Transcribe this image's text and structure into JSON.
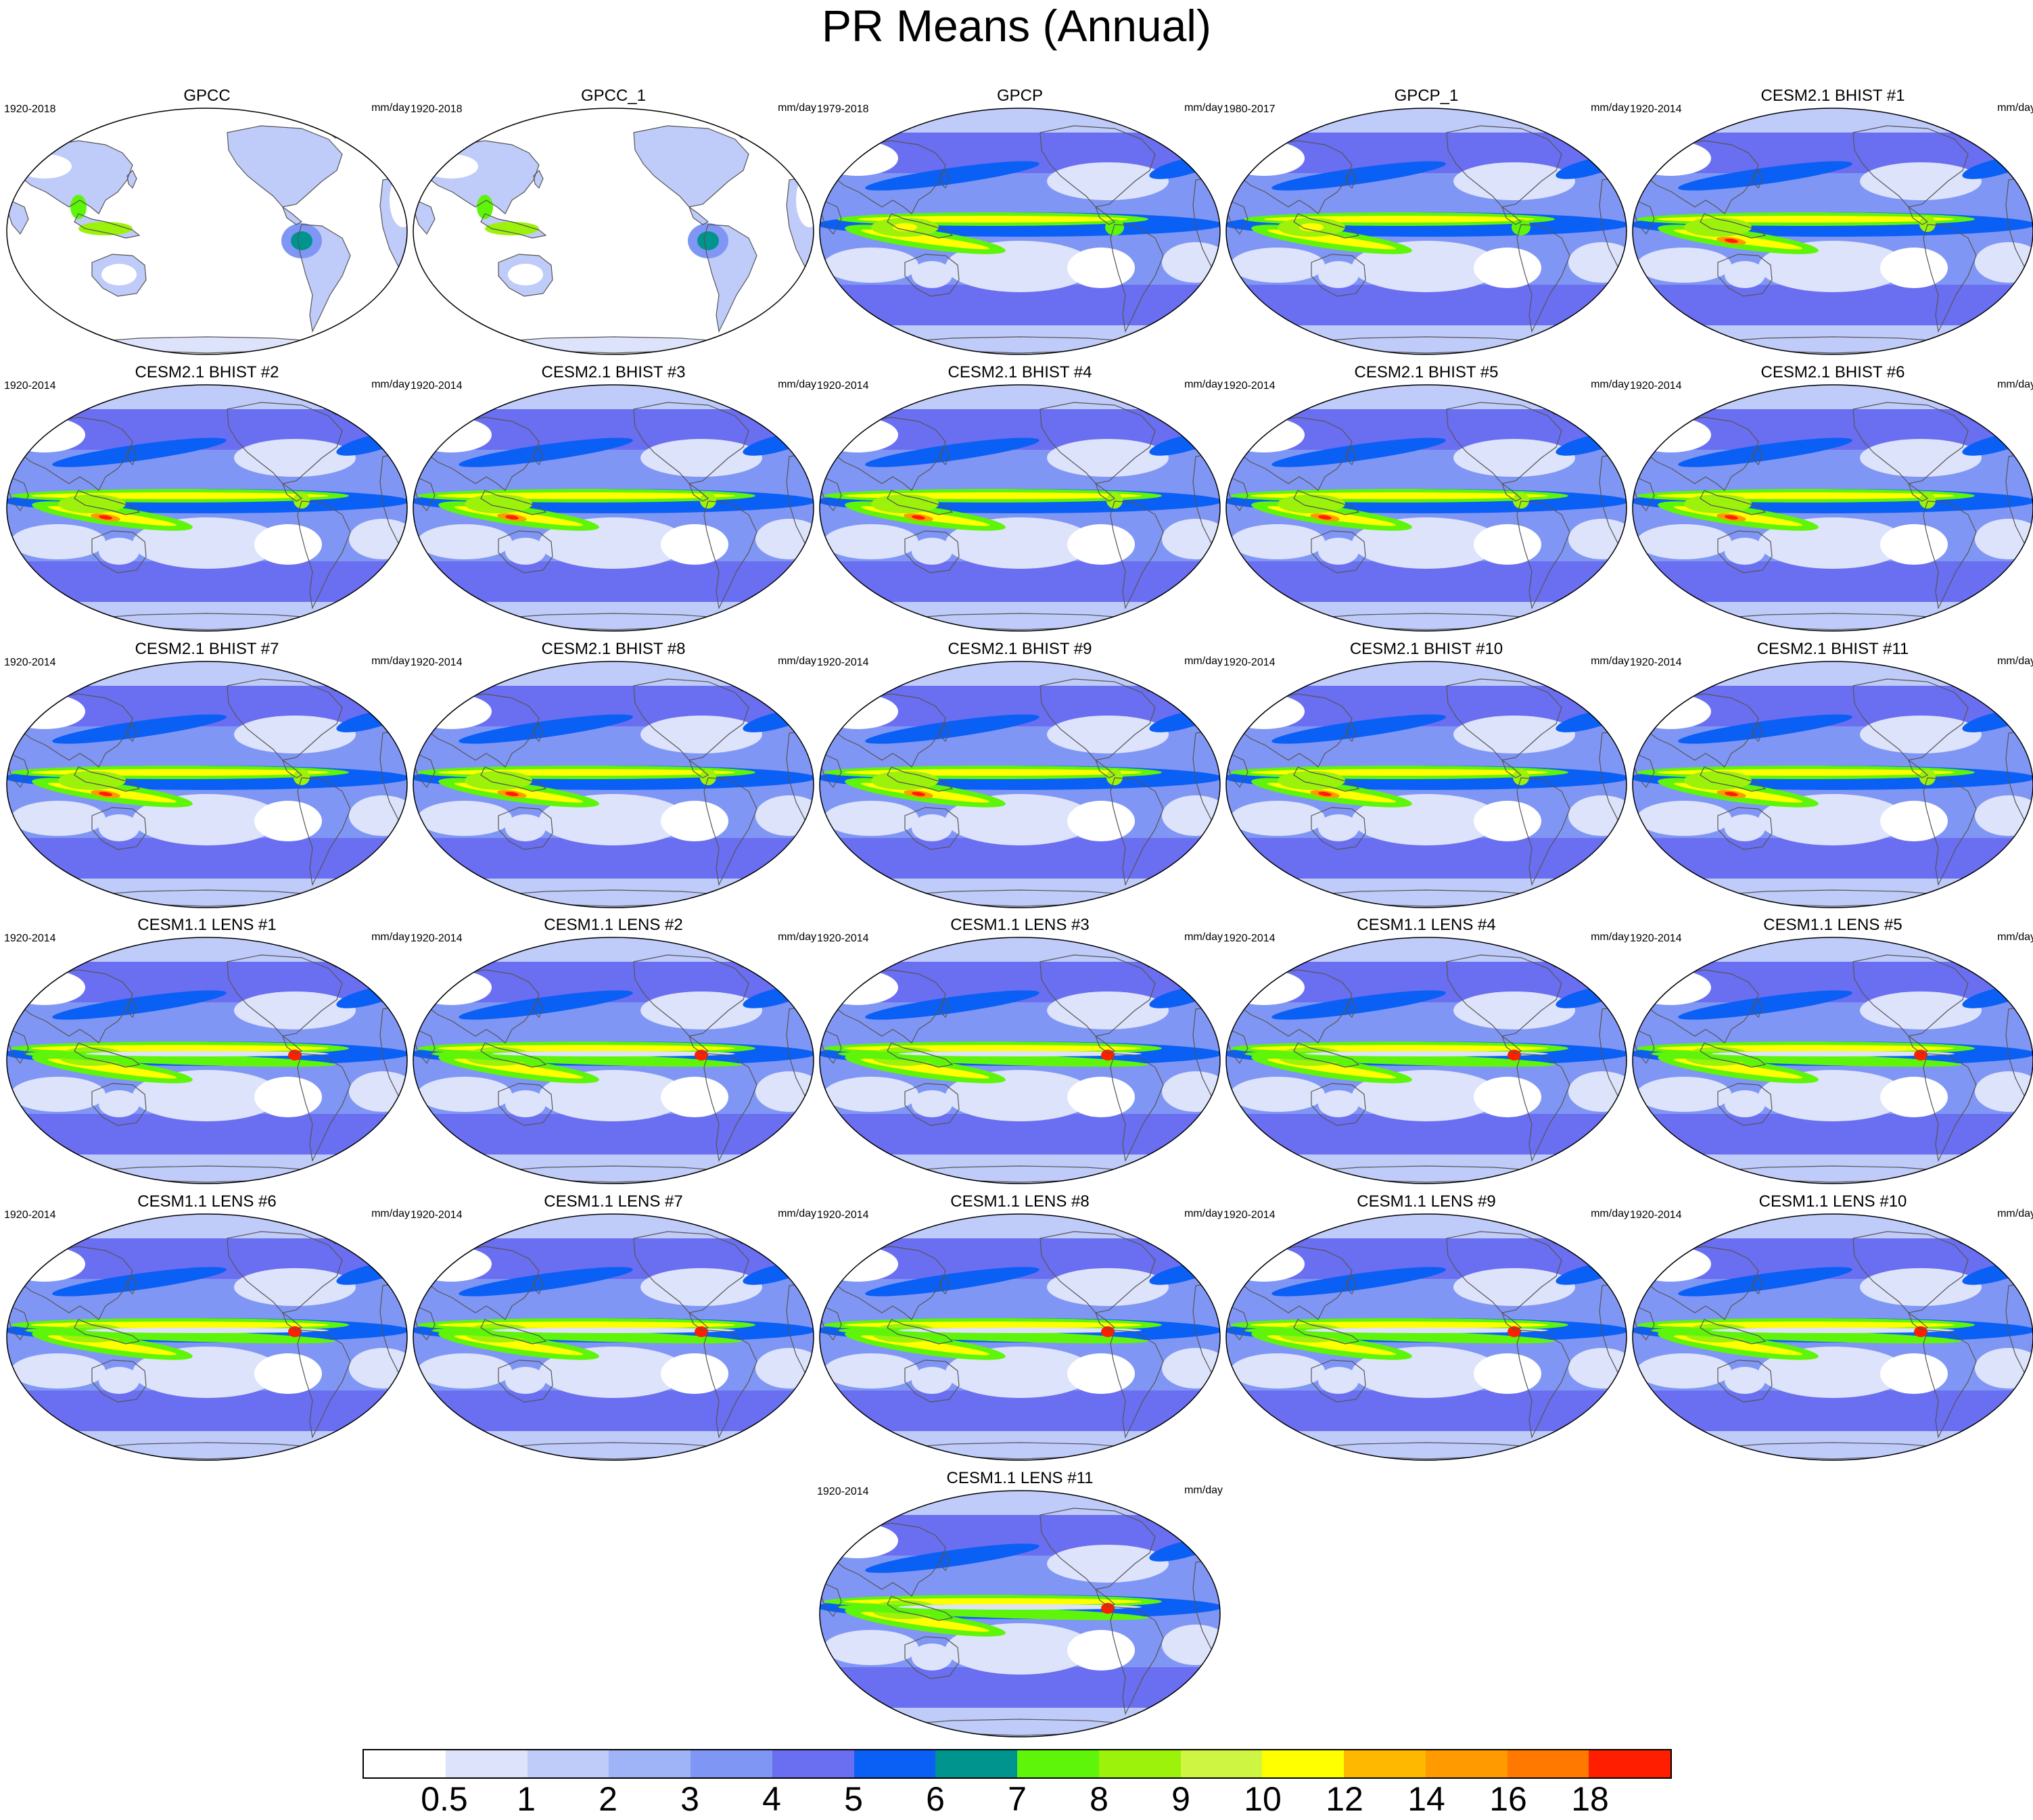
{
  "title": "PR Means (Annual)",
  "units": "mm/day",
  "panels": [
    {
      "title": "GPCC",
      "period": "1920-2018",
      "kind": "land"
    },
    {
      "title": "GPCC_1",
      "period": "1920-2018",
      "kind": "land"
    },
    {
      "title": "GPCP",
      "period": "1979-2018",
      "kind": "obs"
    },
    {
      "title": "GPCP_1",
      "period": "1980-2017",
      "kind": "obs"
    },
    {
      "title": "CESM2.1 BHIST #1",
      "period": "1920-2014",
      "kind": "cesm2"
    },
    {
      "title": "CESM2.1 BHIST #2",
      "period": "1920-2014",
      "kind": "cesm2"
    },
    {
      "title": "CESM2.1 BHIST #3",
      "period": "1920-2014",
      "kind": "cesm2"
    },
    {
      "title": "CESM2.1 BHIST #4",
      "period": "1920-2014",
      "kind": "cesm2"
    },
    {
      "title": "CESM2.1 BHIST #5",
      "period": "1920-2014",
      "kind": "cesm2"
    },
    {
      "title": "CESM2.1 BHIST #6",
      "period": "1920-2014",
      "kind": "cesm2"
    },
    {
      "title": "CESM2.1 BHIST #7",
      "period": "1920-2014",
      "kind": "cesm2"
    },
    {
      "title": "CESM2.1 BHIST #8",
      "period": "1920-2014",
      "kind": "cesm2"
    },
    {
      "title": "CESM2.1 BHIST #9",
      "period": "1920-2014",
      "kind": "cesm2"
    },
    {
      "title": "CESM2.1 BHIST #10",
      "period": "1920-2014",
      "kind": "cesm2"
    },
    {
      "title": "CESM2.1 BHIST #11",
      "period": "1920-2014",
      "kind": "cesm2"
    },
    {
      "title": "CESM1.1 LENS #1",
      "period": "1920-2014",
      "kind": "cesm1"
    },
    {
      "title": "CESM1.1 LENS #2",
      "period": "1920-2014",
      "kind": "cesm1"
    },
    {
      "title": "CESM1.1 LENS #3",
      "period": "1920-2014",
      "kind": "cesm1"
    },
    {
      "title": "CESM1.1 LENS #4",
      "period": "1920-2014",
      "kind": "cesm1"
    },
    {
      "title": "CESM1.1 LENS #5",
      "period": "1920-2014",
      "kind": "cesm1"
    },
    {
      "title": "CESM1.1 LENS #6",
      "period": "1920-2014",
      "kind": "cesm1"
    },
    {
      "title": "CESM1.1 LENS #7",
      "period": "1920-2014",
      "kind": "cesm1"
    },
    {
      "title": "CESM1.1 LENS #8",
      "period": "1920-2014",
      "kind": "cesm1"
    },
    {
      "title": "CESM1.1 LENS #9",
      "period": "1920-2014",
      "kind": "cesm1"
    },
    {
      "title": "CESM1.1 LENS #10",
      "period": "1920-2014",
      "kind": "cesm1"
    },
    {
      "title": "CESM1.1 LENS #11",
      "period": "1920-2014",
      "kind": "cesm1"
    }
  ],
  "colorbar": {
    "colors": [
      "#ffffff",
      "#dde3fb",
      "#bfcbf9",
      "#9fb3f7",
      "#8096f4",
      "#6a6ef0",
      "#0a5ff5",
      "#00948f",
      "#5ef50a",
      "#9cf20a",
      "#cdf542",
      "#ffff00",
      "#ffb800",
      "#ff9a00",
      "#ff7800",
      "#ff1e00"
    ],
    "labels": [
      "0.5",
      "1",
      "2",
      "3",
      "4",
      "5",
      "6",
      "7",
      "8",
      "9",
      "10",
      "12",
      "14",
      "16",
      "18"
    ]
  }
}
